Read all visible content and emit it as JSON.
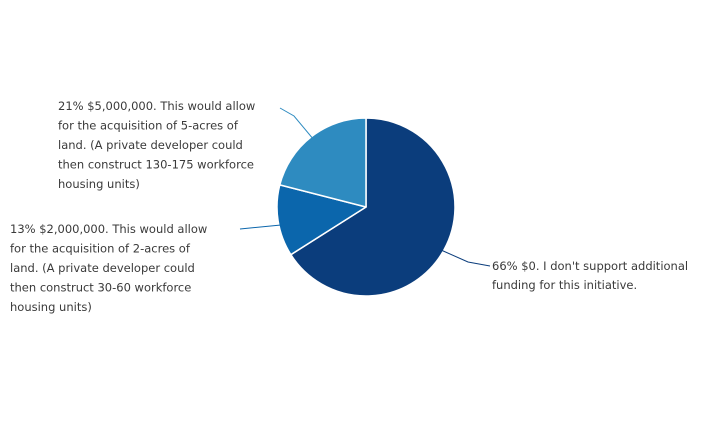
{
  "chart_data": {
    "type": "pie",
    "title": "",
    "slices": [
      {
        "value": 66,
        "color": "#0b3d7c",
        "label_lines": [
          "66% $0. I don't support additional",
          "funding for this initiative."
        ]
      },
      {
        "value": 13,
        "color": "#0b66ac",
        "label_lines": [
          "13% $2,000,000. This would allow",
          "for the acquisition of 2-acres of",
          "land. (A private developer could",
          "then construct 30-60 workforce",
          "housing units)"
        ]
      },
      {
        "value": 21,
        "color": "#2e8bc0",
        "label_lines": [
          "21% $5,000,000. This would allow",
          "for the acquisition of 5-acres of",
          "land. (A private developer could",
          "then construct 130-175 workforce",
          "housing units)"
        ]
      }
    ],
    "legend": "none",
    "grid": false
  }
}
